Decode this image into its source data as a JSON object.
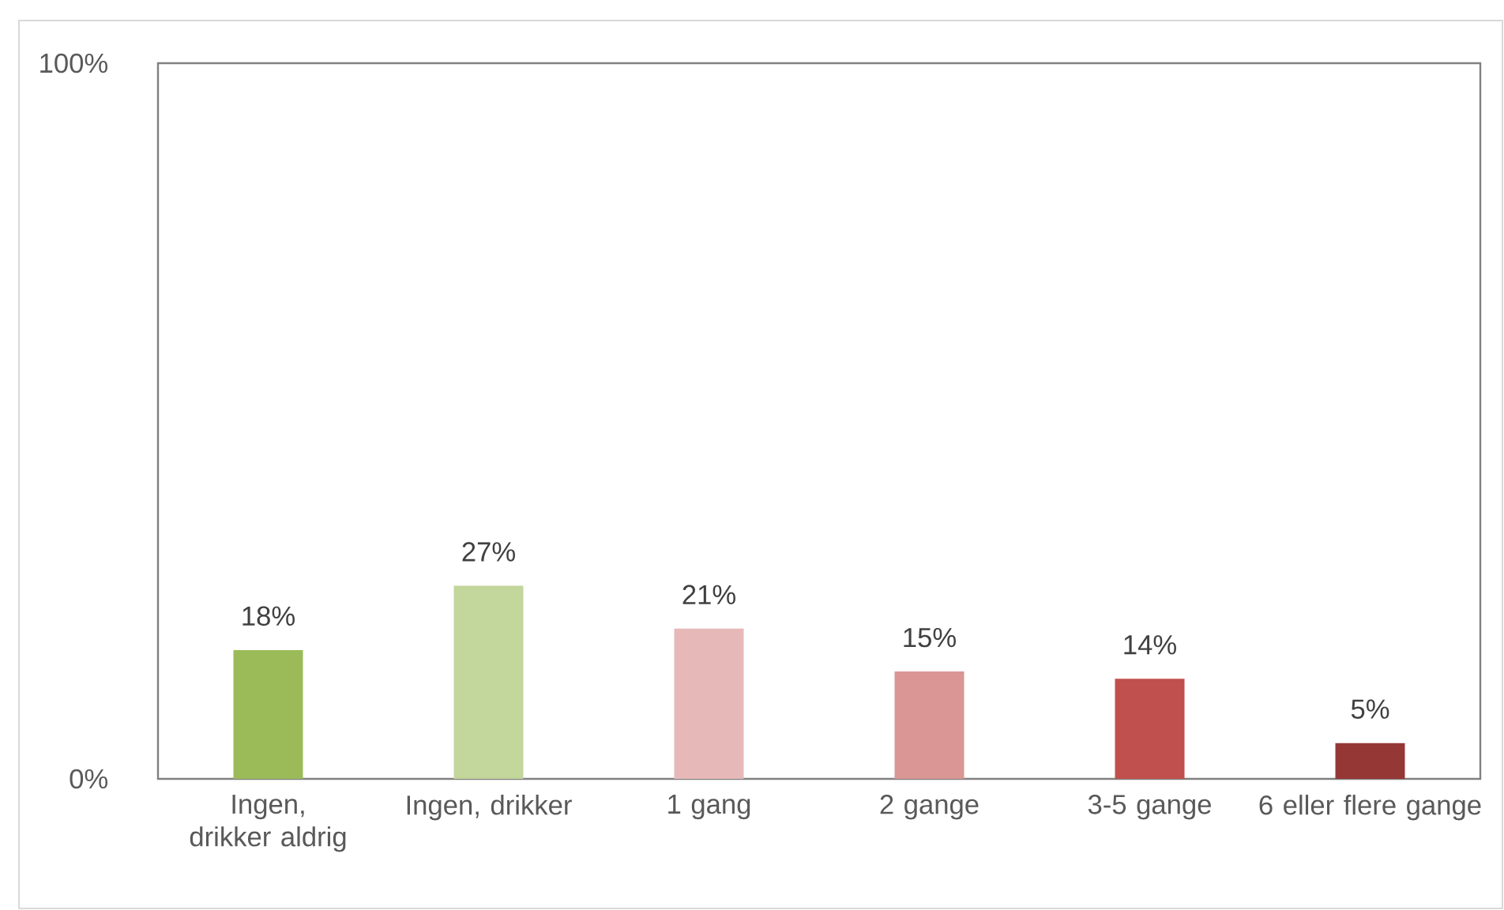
{
  "chart_data": {
    "type": "bar",
    "categories": [
      "Ingen, drikker aldrig",
      "Ingen, drikker",
      "1 gang",
      "2 gange",
      "3-5 gange",
      "6 eller flere gange"
    ],
    "values": [
      18,
      27,
      21,
      15,
      14,
      5
    ],
    "colors": [
      "#9bbb59",
      "#c3d69b",
      "#e6b9b8",
      "#d99694",
      "#c0504d",
      "#953735"
    ],
    "value_labels": [
      "18%",
      "27%",
      "21%",
      "15%",
      "14%",
      "5%"
    ],
    "ylim": [
      0,
      100
    ],
    "yticks": [
      {
        "value": 0,
        "label": "0%"
      },
      {
        "value": 100,
        "label": "100%"
      }
    ]
  }
}
